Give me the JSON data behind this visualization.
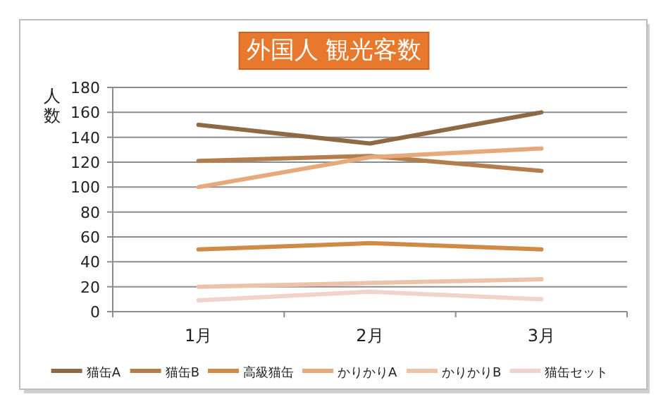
{
  "chart_data": {
    "type": "line",
    "title": "外国人 観光客数",
    "ylabel": "人数",
    "categories": [
      "1月",
      "2月",
      "3月"
    ],
    "series": [
      {
        "name": "猫缶A",
        "color": "#8e6a44",
        "values": [
          150,
          135,
          160
        ]
      },
      {
        "name": "猫缶B",
        "color": "#b47d4c",
        "values": [
          121,
          125,
          113
        ]
      },
      {
        "name": "高級猫缶",
        "color": "#d08a45",
        "values": [
          50,
          55,
          50
        ]
      },
      {
        "name": "かりかりA",
        "color": "#e6a97c",
        "values": [
          100,
          124,
          131
        ]
      },
      {
        "name": "かりかりB",
        "color": "#ecc3a8",
        "values": [
          20,
          23,
          26
        ]
      },
      {
        "name": "猫缶セット",
        "color": "#f1d3cb",
        "values": [
          9,
          16,
          10
        ]
      }
    ],
    "ylim": [
      0,
      180
    ],
    "yticks": [
      0,
      20,
      40,
      60,
      80,
      100,
      120,
      140,
      160,
      180
    ],
    "grid": "y",
    "legend": "bottom",
    "marker": "none",
    "line_style": "solid"
  }
}
